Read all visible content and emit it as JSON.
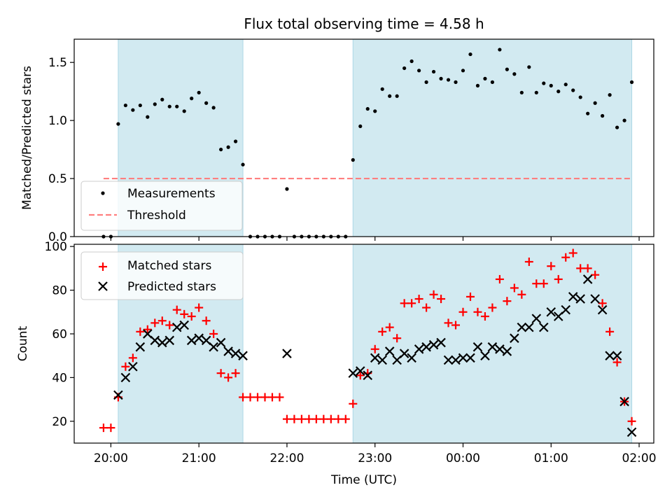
{
  "chart_data": [
    {
      "type": "scatter",
      "title": "Flux total observing time = 4.58 h",
      "xlabel": "",
      "ylabel": "Matched/Predicted stars",
      "xlim": [
        "19:35",
        "02:10"
      ],
      "ylim": [
        0,
        1.7
      ],
      "yticks": [
        "0.0",
        "0.5",
        "1.0",
        "1.5"
      ],
      "yticks_values": [
        0,
        0.5,
        1.0,
        1.5
      ],
      "xtick_labels_shown": false,
      "grid": false,
      "legend": "lower-left",
      "shaded_intervals": [
        [
          "20:05",
          "21:30"
        ],
        [
          "22:45",
          "01:55"
        ]
      ],
      "shade_color": "#add8e6",
      "threshold": {
        "name": "Threshold",
        "value": 0.5,
        "x_range": [
          "19:55",
          "01:55"
        ],
        "color": "#ff7f7f",
        "style": "dashed"
      },
      "series": [
        {
          "name": "Measurements",
          "color": "#000000",
          "marker": "dot",
          "x": [
            "19:55",
            "20:00",
            "20:05",
            "20:10",
            "20:15",
            "20:20",
            "20:25",
            "20:30",
            "20:35",
            "20:40",
            "20:45",
            "20:50",
            "20:55",
            "21:00",
            "21:05",
            "21:10",
            "21:15",
            "21:20",
            "21:25",
            "21:30",
            "21:35",
            "21:40",
            "21:45",
            "21:50",
            "21:55",
            "22:00",
            "22:05",
            "22:10",
            "22:15",
            "22:20",
            "22:25",
            "22:30",
            "22:35",
            "22:40",
            "22:45",
            "22:50",
            "22:55",
            "23:00",
            "23:05",
            "23:10",
            "23:15",
            "23:20",
            "23:25",
            "23:30",
            "23:35",
            "23:40",
            "23:45",
            "23:50",
            "23:55",
            "00:00",
            "00:05",
            "00:10",
            "00:15",
            "00:20",
            "00:25",
            "00:30",
            "00:35",
            "00:40",
            "00:45",
            "00:50",
            "00:55",
            "01:00",
            "01:05",
            "01:10",
            "01:15",
            "01:20",
            "01:25",
            "01:30",
            "01:35",
            "01:40",
            "01:45",
            "01:50",
            "01:55"
          ],
          "y": [
            0,
            0,
            0.97,
            1.13,
            1.09,
            1.13,
            1.03,
            1.14,
            1.18,
            1.12,
            1.12,
            1.08,
            1.19,
            1.24,
            1.15,
            1.11,
            0.75,
            0.77,
            0.82,
            0.62,
            0,
            0,
            0,
            0,
            0,
            0.41,
            0,
            0,
            0,
            0,
            0,
            0,
            0,
            0,
            0.66,
            0.95,
            1.1,
            1.08,
            1.27,
            1.21,
            1.21,
            1.45,
            1.51,
            1.43,
            1.33,
            1.42,
            1.36,
            1.35,
            1.33,
            1.43,
            1.57,
            1.3,
            1.36,
            1.33,
            1.61,
            1.44,
            1.4,
            1.24,
            1.46,
            1.24,
            1.32,
            1.3,
            1.25,
            1.31,
            1.26,
            1.2,
            1.06,
            1.15,
            1.04,
            1.22,
            0.94,
            1.0,
            1.33
          ]
        }
      ]
    },
    {
      "type": "scatter",
      "title": "",
      "xlabel": "Time (UTC)",
      "ylabel": "Count",
      "xlim": [
        "19:35",
        "02:10"
      ],
      "xticks": [
        "20:00",
        "21:00",
        "22:00",
        "23:00",
        "00:00",
        "01:00",
        "02:00"
      ],
      "ylim": [
        10,
        101
      ],
      "yticks": [
        20,
        40,
        60,
        80,
        100
      ],
      "grid": false,
      "legend": "upper-left",
      "shaded_intervals": [
        [
          "20:05",
          "21:30"
        ],
        [
          "22:45",
          "01:55"
        ]
      ],
      "shade_color": "#add8e6",
      "series": [
        {
          "name": "Matched stars",
          "color": "#ff0000",
          "marker": "plus",
          "x": [
            "19:55",
            "20:00",
            "20:05",
            "20:10",
            "20:15",
            "20:20",
            "20:25",
            "20:30",
            "20:35",
            "20:40",
            "20:45",
            "20:50",
            "20:55",
            "21:00",
            "21:05",
            "21:10",
            "21:15",
            "21:20",
            "21:25",
            "21:30",
            "21:35",
            "21:40",
            "21:45",
            "21:50",
            "21:55",
            "22:00",
            "22:05",
            "22:10",
            "22:15",
            "22:20",
            "22:25",
            "22:30",
            "22:35",
            "22:40",
            "22:45",
            "22:50",
            "22:55",
            "23:00",
            "23:05",
            "23:10",
            "23:15",
            "23:20",
            "23:25",
            "23:30",
            "23:35",
            "23:40",
            "23:45",
            "23:50",
            "23:55",
            "00:00",
            "00:05",
            "00:10",
            "00:15",
            "00:20",
            "00:25",
            "00:30",
            "00:35",
            "00:40",
            "00:45",
            "00:50",
            "00:55",
            "01:00",
            "01:05",
            "01:10",
            "01:15",
            "01:20",
            "01:25",
            "01:30",
            "01:35",
            "01:40",
            "01:45",
            "01:50",
            "01:55"
          ],
          "y": [
            17,
            17,
            31,
            45,
            49,
            61,
            62,
            65,
            66,
            64,
            71,
            69,
            68,
            72,
            66,
            60,
            42,
            40,
            42,
            31,
            31,
            31,
            31,
            31,
            31,
            21,
            21,
            21,
            21,
            21,
            21,
            21,
            21,
            21,
            28,
            41,
            42,
            53,
            61,
            63,
            58,
            74,
            74,
            76,
            72,
            78,
            76,
            65,
            64,
            70,
            77,
            70,
            68,
            72,
            85,
            75,
            81,
            78,
            93,
            83,
            83,
            91,
            85,
            95,
            97,
            90,
            90,
            87,
            74,
            61,
            47,
            29,
            20
          ]
        },
        {
          "name": "Predicted stars",
          "color": "#000000",
          "marker": "x",
          "x": [
            "20:05",
            "20:10",
            "20:15",
            "20:20",
            "20:25",
            "20:30",
            "20:35",
            "20:40",
            "20:45",
            "20:50",
            "20:55",
            "21:00",
            "21:05",
            "21:10",
            "21:15",
            "21:20",
            "21:25",
            "21:30",
            "22:00",
            "22:45",
            "22:50",
            "22:55",
            "23:00",
            "23:05",
            "23:10",
            "23:15",
            "23:20",
            "23:25",
            "23:30",
            "23:35",
            "23:40",
            "23:45",
            "23:50",
            "23:55",
            "00:00",
            "00:05",
            "00:10",
            "00:15",
            "00:20",
            "00:25",
            "00:30",
            "00:35",
            "00:40",
            "00:45",
            "00:50",
            "00:55",
            "01:00",
            "01:05",
            "01:10",
            "01:15",
            "01:20",
            "01:25",
            "01:30",
            "01:35",
            "01:40",
            "01:45",
            "01:50",
            "01:55"
          ],
          "y": [
            32,
            40,
            45,
            54,
            60,
            57,
            56,
            57,
            63,
            64,
            57,
            58,
            57,
            54,
            56,
            52,
            51,
            50,
            51,
            42,
            43,
            41,
            49,
            48,
            52,
            48,
            51,
            49,
            53,
            54,
            55,
            56,
            48,
            48,
            49,
            49,
            54,
            50,
            54,
            53,
            52,
            58,
            63,
            63,
            67,
            63,
            70,
            68,
            71,
            77,
            76,
            85,
            76,
            71,
            50,
            50,
            29,
            15
          ]
        }
      ]
    }
  ]
}
